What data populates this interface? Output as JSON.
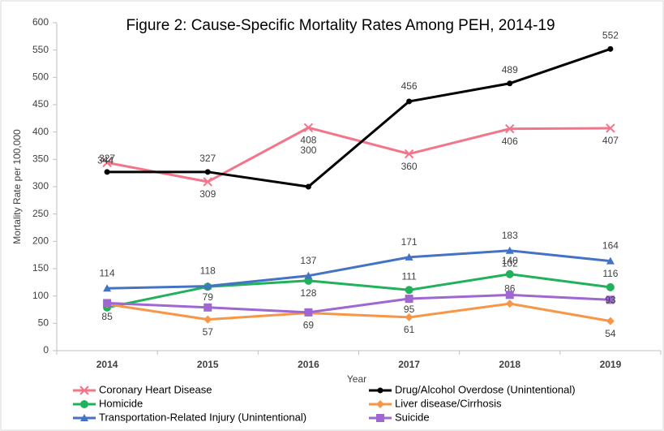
{
  "chart_data": {
    "type": "line",
    "title": "Figure 2: Cause-Specific Mortality Rates Among PEH, 2014-19",
    "x_label": "Year",
    "y_label": "Mortality Rate per 100,000",
    "categories": [
      "2014",
      "2015",
      "2016",
      "2017",
      "2018",
      "2019"
    ],
    "ylim": [
      0,
      600
    ],
    "yticks": [
      0,
      50,
      100,
      150,
      200,
      250,
      300,
      350,
      400,
      450,
      500,
      550,
      600
    ],
    "grid": false,
    "legend": "bottom",
    "series": [
      {
        "name": "Coronary Heart Disease",
        "color": "#f4758a",
        "marker": "x",
        "values": [
          344,
          309,
          408,
          360,
          406,
          407
        ],
        "value_labels": [
          "344",
          "309",
          "408",
          "360",
          "406",
          "407"
        ]
      },
      {
        "name": "Drug/Alcohol Overdose (Unintentional)",
        "color": "#000000",
        "marker": "circle",
        "values": [
          327,
          327,
          300,
          456,
          489,
          552
        ],
        "value_labels": [
          "327",
          "327",
          "300",
          "456",
          "489",
          "552"
        ]
      },
      {
        "name": "Homicide",
        "color": "#1fb25a",
        "marker": "bigcircle",
        "values": [
          79,
          117,
          128,
          111,
          140,
          116
        ],
        "value_labels": [
          null,
          null,
          "128",
          "111",
          "140",
          "116"
        ]
      },
      {
        "name": "Liver disease/Cirrhosis",
        "color": "#f79646",
        "marker": "diamond",
        "values": [
          85,
          57,
          69,
          61,
          86,
          54
        ],
        "value_labels": [
          "85",
          "57",
          "69",
          "61",
          "86",
          "54"
        ]
      },
      {
        "name": "Transportation-Related Injury (Unintentional)",
        "color": "#4472c4",
        "marker": "triangle",
        "values": [
          114,
          118,
          137,
          171,
          183,
          164
        ],
        "value_labels": [
          "114",
          "118",
          "137",
          "171",
          "183",
          "164"
        ]
      },
      {
        "name": "Suicide",
        "color": "#9e67d1",
        "marker": "square",
        "values": [
          87,
          79,
          70,
          95,
          102,
          93
        ],
        "value_labels": [
          null,
          "79",
          null,
          "95",
          "102",
          "93"
        ]
      }
    ]
  }
}
